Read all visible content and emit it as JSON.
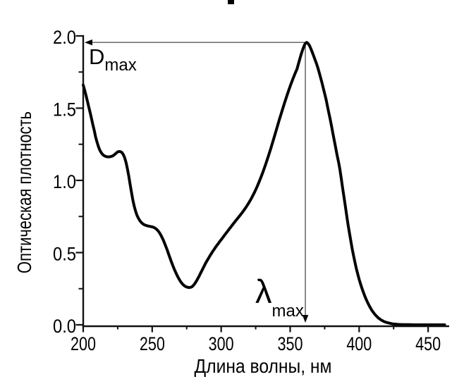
{
  "chart_data": {
    "type": "line",
    "title": "",
    "xlabel": "Длина волны, нм",
    "ylabel": "Оптическая плотность",
    "xlim": [
      200,
      465
    ],
    "ylim": [
      0,
      2.0
    ],
    "grid": false,
    "legend": "none",
    "background_color": "#ffffff",
    "text_color": "#000000",
    "axis_color": "#111111",
    "arrow_color": "#5a5a5a",
    "x_major_ticks": [
      {
        "v": 200,
        "label": "200"
      },
      {
        "v": 250,
        "label": "250"
      },
      {
        "v": 300,
        "label": "300"
      },
      {
        "v": 350,
        "label": "350"
      },
      {
        "v": 400,
        "label": "400"
      },
      {
        "v": 450,
        "label": "450"
      }
    ],
    "x_minor_ticks": [
      225,
      275,
      325,
      375,
      425
    ],
    "y_major_ticks": [
      {
        "v": 0.0,
        "label": "0.0"
      },
      {
        "v": 0.5,
        "label": "0.5"
      },
      {
        "v": 1.0,
        "label": "1.0"
      },
      {
        "v": 1.5,
        "label": "1.5"
      },
      {
        "v": 2.0,
        "label": "2.0"
      }
    ],
    "y_minor_ticks": [
      0.25,
      0.75,
      1.25,
      1.75
    ],
    "peak": {
      "lambda_nm": 361,
      "optical_density": 1.96
    },
    "local_features": {
      "start_value_at_200nm": 1.66,
      "local_maximum": {
        "lambda_nm": 226,
        "optical_density": 1.2
      },
      "shoulder": {
        "lambda_nm": 248,
        "optical_density": 0.68
      },
      "minimum": {
        "lambda_nm": 277,
        "optical_density": 0.26
      }
    },
    "annotations": [
      {
        "id": "dmax",
        "base": "D",
        "sub": "max"
      },
      {
        "id": "lambdamax",
        "base": "λ",
        "sub": "max"
      }
    ],
    "series": [
      {
        "name": "absorption-spectrum",
        "color": "#000000",
        "stroke_width": 4,
        "points": [
          [
            200,
            1.66
          ],
          [
            201,
            1.625
          ],
          [
            202,
            1.59
          ],
          [
            203,
            1.55
          ],
          [
            204,
            1.51
          ],
          [
            205,
            1.47
          ],
          [
            206,
            1.43
          ],
          [
            207,
            1.385
          ],
          [
            208,
            1.345
          ],
          [
            209,
            1.3
          ],
          [
            210,
            1.265
          ],
          [
            211,
            1.235
          ],
          [
            212,
            1.21
          ],
          [
            213,
            1.193
          ],
          [
            214,
            1.18
          ],
          [
            215,
            1.172
          ],
          [
            216,
            1.167
          ],
          [
            217,
            1.164
          ],
          [
            218,
            1.163
          ],
          [
            219,
            1.163
          ],
          [
            220,
            1.165
          ],
          [
            221,
            1.168
          ],
          [
            222,
            1.173
          ],
          [
            223,
            1.181
          ],
          [
            224,
            1.19
          ],
          [
            225,
            1.197
          ],
          [
            226,
            1.2
          ],
          [
            227,
            1.199
          ],
          [
            228,
            1.193
          ],
          [
            229,
            1.18
          ],
          [
            230,
            1.158
          ],
          [
            231,
            1.125
          ],
          [
            232,
            1.082
          ],
          [
            233,
            1.03
          ],
          [
            234,
            0.973
          ],
          [
            235,
            0.916
          ],
          [
            236,
            0.864
          ],
          [
            237,
            0.82
          ],
          [
            238,
            0.785
          ],
          [
            239,
            0.758
          ],
          [
            240,
            0.738
          ],
          [
            241,
            0.722
          ],
          [
            242,
            0.71
          ],
          [
            243,
            0.701
          ],
          [
            244,
            0.694
          ],
          [
            245,
            0.69
          ],
          [
            246,
            0.687
          ],
          [
            247,
            0.684
          ],
          [
            248,
            0.682
          ],
          [
            249,
            0.68
          ],
          [
            250,
            0.678
          ],
          [
            251,
            0.675
          ],
          [
            252,
            0.67
          ],
          [
            253,
            0.663
          ],
          [
            254,
            0.653
          ],
          [
            255,
            0.641
          ],
          [
            256,
            0.626
          ],
          [
            257,
            0.608
          ],
          [
            258,
            0.588
          ],
          [
            259,
            0.565
          ],
          [
            260,
            0.54
          ],
          [
            261,
            0.514
          ],
          [
            262,
            0.487
          ],
          [
            263,
            0.46
          ],
          [
            264,
            0.434
          ],
          [
            265,
            0.409
          ],
          [
            266,
            0.386
          ],
          [
            267,
            0.364
          ],
          [
            268,
            0.344
          ],
          [
            269,
            0.325
          ],
          [
            270,
            0.308
          ],
          [
            271,
            0.294
          ],
          [
            272,
            0.282
          ],
          [
            273,
            0.273
          ],
          [
            274,
            0.266
          ],
          [
            275,
            0.262
          ],
          [
            276,
            0.259
          ],
          [
            277,
            0.258
          ],
          [
            278,
            0.26
          ],
          [
            279,
            0.265
          ],
          [
            280,
            0.274
          ],
          [
            281,
            0.287
          ],
          [
            282,
            0.302
          ],
          [
            283,
            0.319
          ],
          [
            284,
            0.337
          ],
          [
            285,
            0.356
          ],
          [
            286,
            0.375
          ],
          [
            287,
            0.394
          ],
          [
            288,
            0.413
          ],
          [
            289,
            0.431
          ],
          [
            290,
            0.448
          ],
          [
            291,
            0.464
          ],
          [
            292,
            0.48
          ],
          [
            293,
            0.495
          ],
          [
            294,
            0.51
          ],
          [
            295,
            0.524
          ],
          [
            296,
            0.538
          ],
          [
            297,
            0.551
          ],
          [
            298,
            0.564
          ],
          [
            299,
            0.577
          ],
          [
            300,
            0.59
          ],
          [
            302,
            0.615
          ],
          [
            304,
            0.64
          ],
          [
            306,
            0.665
          ],
          [
            308,
            0.69
          ],
          [
            310,
            0.714
          ],
          [
            312,
            0.738
          ],
          [
            314,
            0.762
          ],
          [
            316,
            0.787
          ],
          [
            318,
            0.814
          ],
          [
            320,
            0.844
          ],
          [
            322,
            0.877
          ],
          [
            324,
            0.914
          ],
          [
            326,
            0.955
          ],
          [
            328,
            1.001
          ],
          [
            330,
            1.051
          ],
          [
            332,
            1.105
          ],
          [
            334,
            1.162
          ],
          [
            336,
            1.222
          ],
          [
            338,
            1.285
          ],
          [
            340,
            1.35
          ],
          [
            342,
            1.415
          ],
          [
            344,
            1.478
          ],
          [
            346,
            1.539
          ],
          [
            348,
            1.597
          ],
          [
            350,
            1.652
          ],
          [
            352,
            1.703
          ],
          [
            354,
            1.75
          ],
          [
            355,
            1.772
          ],
          [
            356,
            1.807
          ],
          [
            357,
            1.841
          ],
          [
            358,
            1.873
          ],
          [
            359,
            1.903
          ],
          [
            360,
            1.93
          ],
          [
            361,
            1.949
          ],
          [
            362,
            1.955
          ],
          [
            363,
            1.948
          ],
          [
            364,
            1.933
          ],
          [
            365,
            1.912
          ],
          [
            366,
            1.888
          ],
          [
            367,
            1.862
          ],
          [
            368,
            1.836
          ],
          [
            369,
            1.81
          ],
          [
            370,
            1.782
          ],
          [
            371,
            1.748
          ],
          [
            372,
            1.714
          ],
          [
            373,
            1.678
          ],
          [
            374,
            1.64
          ],
          [
            375,
            1.601
          ],
          [
            376,
            1.561
          ],
          [
            377,
            1.515
          ],
          [
            378,
            1.468
          ],
          [
            379,
            1.425
          ],
          [
            380,
            1.375
          ],
          [
            381,
            1.325
          ],
          [
            382,
            1.275
          ],
          [
            383,
            1.225
          ],
          [
            384,
            1.175
          ],
          [
            385,
            1.13
          ],
          [
            386,
            1.08
          ],
          [
            387,
            1.015
          ],
          [
            388,
            0.95
          ],
          [
            389,
            0.885
          ],
          [
            390,
            0.82
          ],
          [
            391,
            0.755
          ],
          [
            392,
            0.69
          ],
          [
            393,
            0.635
          ],
          [
            394,
            0.578
          ],
          [
            395,
            0.525
          ],
          [
            396,
            0.476
          ],
          [
            397,
            0.43
          ],
          [
            398,
            0.388
          ],
          [
            399,
            0.35
          ],
          [
            400,
            0.315
          ],
          [
            401,
            0.283
          ],
          [
            402,
            0.254
          ],
          [
            403,
            0.227
          ],
          [
            404,
            0.202
          ],
          [
            405,
            0.178
          ],
          [
            406,
            0.157
          ],
          [
            407,
            0.138
          ],
          [
            408,
            0.12
          ],
          [
            409,
            0.104
          ],
          [
            410,
            0.09
          ],
          [
            411,
            0.077
          ],
          [
            412,
            0.066
          ],
          [
            413,
            0.056
          ],
          [
            414,
            0.047
          ],
          [
            415,
            0.04
          ],
          [
            416,
            0.033
          ],
          [
            417,
            0.028
          ],
          [
            418,
            0.023
          ],
          [
            419,
            0.019
          ],
          [
            420,
            0.016
          ],
          [
            422,
            0.011
          ],
          [
            424,
            0.007
          ],
          [
            426,
            0.005
          ],
          [
            428,
            0.003
          ],
          [
            430,
            0.002
          ],
          [
            433,
            0.001
          ],
          [
            436,
            0.001
          ],
          [
            440,
            0
          ],
          [
            445,
            0
          ],
          [
            450,
            0
          ],
          [
            456,
            0
          ],
          [
            462,
            0
          ]
        ]
      }
    ]
  }
}
